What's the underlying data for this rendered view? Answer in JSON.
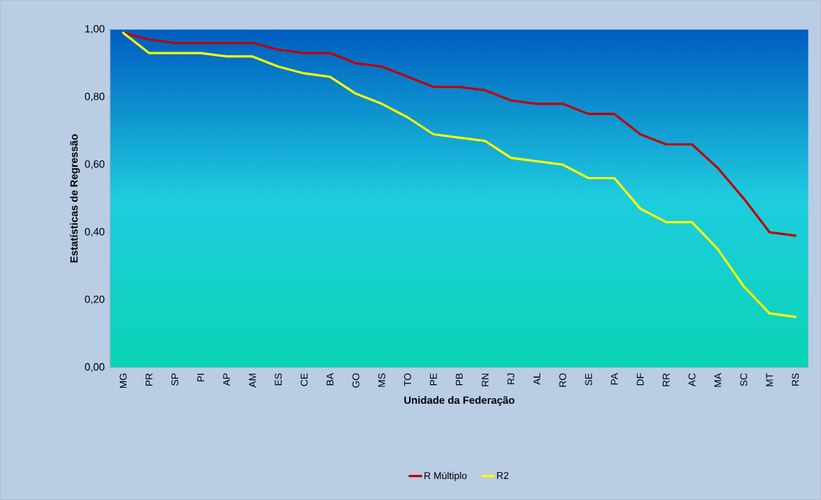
{
  "chart_data": {
    "type": "line",
    "xlabel": "Unidade da Federação",
    "ylabel": "Estatísticas de Regressão",
    "categories": [
      "MG",
      "PR",
      "SP",
      "PI",
      "AP",
      "AM",
      "ES",
      "CE",
      "BA",
      "GO",
      "MS",
      "TO",
      "PE",
      "PB",
      "RN",
      "RJ",
      "AL",
      "RO",
      "SE",
      "PA",
      "DF",
      "RR",
      "AC",
      "MA",
      "SC",
      "MT",
      "RS"
    ],
    "series": [
      {
        "name": "R Múltiplo",
        "color": "#c00000",
        "values": [
          0.99,
          0.97,
          0.96,
          0.96,
          0.96,
          0.96,
          0.94,
          0.93,
          0.93,
          0.9,
          0.89,
          0.86,
          0.83,
          0.83,
          0.82,
          0.79,
          0.78,
          0.78,
          0.75,
          0.75,
          0.69,
          0.66,
          0.66,
          0.59,
          0.5,
          0.4,
          0.39
        ]
      },
      {
        "name": "R2",
        "color": "#ffff00",
        "values": [
          0.99,
          0.93,
          0.93,
          0.93,
          0.92,
          0.92,
          0.89,
          0.87,
          0.86,
          0.81,
          0.78,
          0.74,
          0.69,
          0.68,
          0.67,
          0.62,
          0.61,
          0.6,
          0.56,
          0.56,
          0.47,
          0.43,
          0.43,
          0.35,
          0.24,
          0.16,
          0.15
        ]
      }
    ],
    "ylim": [
      0,
      1
    ],
    "yticks": [
      {
        "value": 0,
        "label": "0,00"
      },
      {
        "value": 0.2,
        "label": "0,20"
      },
      {
        "value": 0.4,
        "label": "0,40"
      },
      {
        "value": 0.6,
        "label": "0,60"
      },
      {
        "value": 0.8,
        "label": "0,80"
      },
      {
        "value": 1,
        "label": "1,00"
      }
    ],
    "grid": false,
    "legend": "bottom",
    "marker": "none",
    "line_style": "solid"
  }
}
